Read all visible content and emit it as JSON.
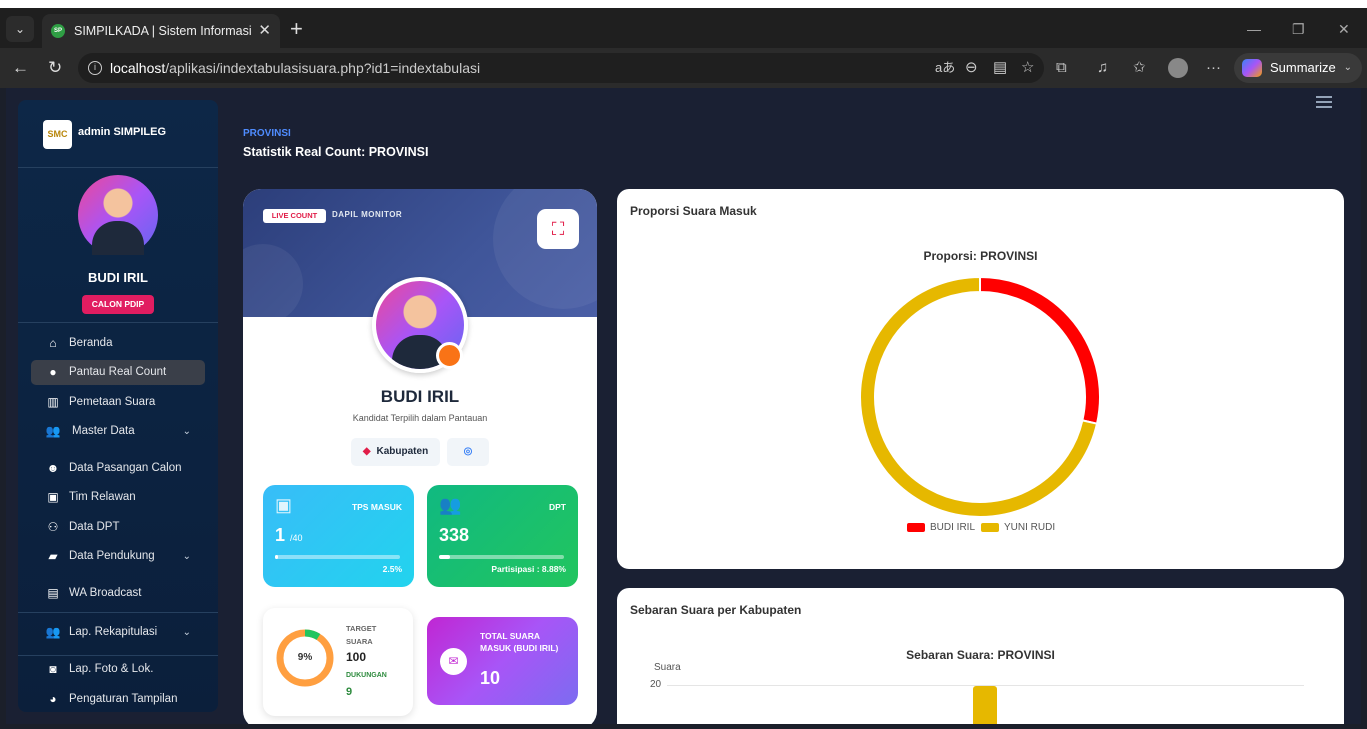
{
  "browser": {
    "tab_title": "SIMPILKADA | Sistem Informasi Ma",
    "url_host": "localhost",
    "url_path": "/aplikasi/indextabulasisuara.php?id1=indextabulasi",
    "summarize_label": "Summarize"
  },
  "sidebar": {
    "brand": "admin SIMPILEG",
    "user_name": "BUDI IRIL",
    "user_badge": "CALON PDIP",
    "items": [
      {
        "label": "Beranda",
        "icon": "home-icon"
      },
      {
        "label": "Pantau Real Count",
        "icon": "fire-icon"
      },
      {
        "label": "Pemetaan Suara",
        "icon": "map-icon"
      },
      {
        "label": "Master Data",
        "icon": "users-icon"
      },
      {
        "label": "Data Pasangan Calon",
        "icon": "face-icon"
      },
      {
        "label": "Tim Relawan",
        "icon": "id-card-icon"
      },
      {
        "label": "Data DPT",
        "icon": "people-icon"
      },
      {
        "label": "Data Pendukung",
        "icon": "folder-icon"
      },
      {
        "label": "WA Broadcast",
        "icon": "message-icon"
      },
      {
        "label": "Lap. Rekapitulasi",
        "icon": "users-icon"
      },
      {
        "label": "Lap. Foto & Lok.",
        "icon": "camera-icon"
      },
      {
        "label": "Pengaturan Tampilan",
        "icon": "palette-icon"
      }
    ]
  },
  "header": {
    "breadcrumb": "PROVINSI",
    "title": "Statistik Real Count: PROVINSI"
  },
  "candidate_card": {
    "live_badge": "LIVE COUNT",
    "dapil_label": "DAPIL MONITOR",
    "name": "BUDI IRIL",
    "subtitle": "Kandidat Terpilih dalam Pantauan",
    "kabupaten_label": "Kabupaten",
    "tps": {
      "label": "TPS MASUK",
      "value": "1",
      "total": "/40",
      "percent_label": "2.5%",
      "progress": 0.025
    },
    "dpt": {
      "label": "DPT",
      "value": "338",
      "foot": "Partisipasi : 8.88%",
      "progress": 0.0888
    },
    "target": {
      "percent_label": "9%",
      "progress": 0.09,
      "target_label": "TARGET SUARA",
      "target_value": "100",
      "support_label": "DUKUNGAN",
      "support_value": "9"
    },
    "total": {
      "label": "TOTAL SUARA MASUK (BUDI IRIL)",
      "value": "10"
    }
  },
  "pie_panel": {
    "title": "Proporsi Suara Masuk",
    "colors": {
      "budi": "#ff0000",
      "yuni": "#e6b800"
    }
  },
  "bar_panel": {
    "title": "Sebaran Suara per Kabupaten"
  },
  "chart_data": [
    {
      "type": "pie",
      "title": "Proporsi: PROVINSI",
      "labels": [
        "BUDI IRIL",
        "YUNI RUDI"
      ],
      "values": [
        10,
        25
      ],
      "colors": [
        "#ff0000",
        "#e6b800"
      ],
      "legend": "bottom"
    },
    {
      "type": "bar",
      "title": "Sebaran Suara: PROVINSI",
      "ylabel": "Suara",
      "yticks": [
        20
      ],
      "grid": true
    }
  ]
}
